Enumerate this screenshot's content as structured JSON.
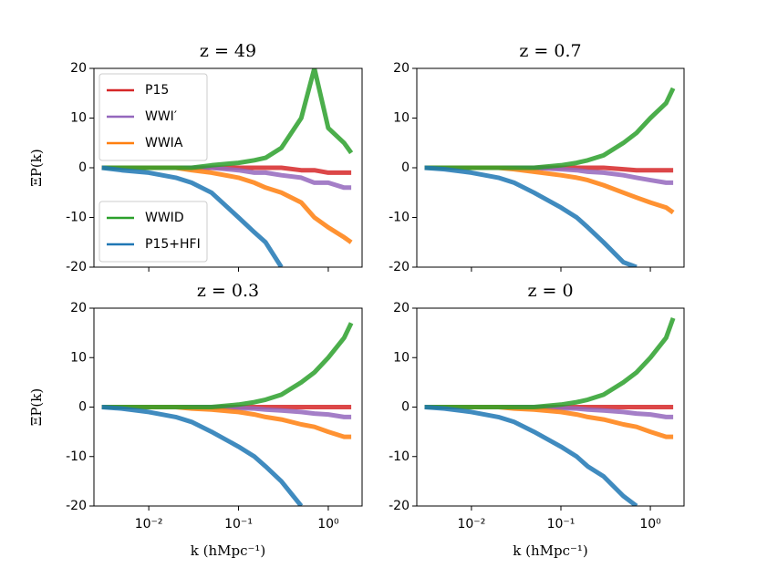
{
  "chart_data": [
    {
      "type": "line",
      "title": "z = 49",
      "ylabel": "ΞP(k)",
      "xscale": "log",
      "x": [
        0.003,
        0.005,
        0.01,
        0.02,
        0.03,
        0.05,
        0.1,
        0.15,
        0.2,
        0.3,
        0.5,
        0.7,
        1.0,
        1.5,
        1.8
      ],
      "xlim": [
        0.00245,
        2.38
      ],
      "xticks": [
        0.01,
        0.1,
        1
      ],
      "ylim": [
        -20,
        20
      ],
      "yticks": [
        -20,
        -10,
        0,
        10,
        20
      ],
      "legend": [
        {
          "loc": "upper left",
          "series": [
            0,
            1,
            2
          ]
        },
        {
          "loc": "lower left",
          "series": [
            3,
            4
          ]
        }
      ],
      "series": [
        {
          "name": "P15",
          "color": "#d62728",
          "values": [
            0,
            0,
            0,
            0,
            0,
            0,
            0,
            0,
            0,
            0,
            -0.5,
            -0.5,
            -1,
            -1,
            -1
          ]
        },
        {
          "name": "WWI′",
          "color": "#9467bd",
          "values": [
            0,
            0,
            0,
            0,
            0,
            0,
            -0.5,
            -1,
            -1,
            -1.5,
            -2,
            -3,
            -3,
            -4,
            -4
          ]
        },
        {
          "name": "WWIA",
          "color": "#ff7f0e",
          "values": [
            0,
            0,
            0,
            0,
            -0.5,
            -1,
            -2,
            -3,
            -4,
            -5,
            -7,
            -10,
            -12,
            -14,
            -15
          ]
        },
        {
          "name": "WWID",
          "color": "#2ca02c",
          "values": [
            0,
            0,
            0,
            0,
            0,
            0.5,
            1,
            1.5,
            2,
            4,
            10,
            20,
            8,
            5,
            3
          ]
        },
        {
          "name": "P15+HFI",
          "color": "#1f77b4",
          "values": [
            0,
            -0.5,
            -1,
            -2,
            -3,
            -5,
            -10,
            -13,
            -15,
            -20,
            null,
            null,
            null,
            null,
            null
          ]
        }
      ]
    },
    {
      "type": "line",
      "title": "z = 0.7",
      "xscale": "log",
      "x": [
        0.003,
        0.005,
        0.01,
        0.02,
        0.03,
        0.05,
        0.1,
        0.15,
        0.2,
        0.3,
        0.5,
        0.7,
        1.0,
        1.5,
        1.8
      ],
      "xlim": [
        0.00245,
        2.38
      ],
      "xticks": [
        0.01,
        0.1,
        1
      ],
      "ylim": [
        -20,
        20
      ],
      "yticks": [
        -20,
        -10,
        0,
        10,
        20
      ],
      "series": [
        {
          "name": "P15",
          "color": "#d62728",
          "values": [
            0,
            0,
            0,
            0,
            0,
            0,
            0,
            0,
            0,
            0,
            -0.3,
            -0.5,
            -0.5,
            -0.5,
            -0.5
          ]
        },
        {
          "name": "WWI′",
          "color": "#9467bd",
          "values": [
            0,
            0,
            0,
            0,
            0,
            0,
            -0.3,
            -0.5,
            -0.8,
            -1,
            -1.5,
            -2,
            -2.5,
            -3,
            -3
          ]
        },
        {
          "name": "WWIA",
          "color": "#ff7f0e",
          "values": [
            0,
            0,
            0,
            0,
            -0.3,
            -0.8,
            -1.5,
            -2,
            -2.5,
            -3.5,
            -5,
            -6,
            -7,
            -8,
            -9
          ]
        },
        {
          "name": "WWID",
          "color": "#2ca02c",
          "values": [
            0,
            0,
            0,
            0,
            0,
            0,
            0.5,
            1,
            1.5,
            2.5,
            5,
            7,
            10,
            13,
            16
          ]
        },
        {
          "name": "P15+HFI",
          "color": "#1f77b4",
          "values": [
            0,
            -0.3,
            -1,
            -2,
            -3,
            -5,
            -8,
            -10,
            -12,
            -15,
            -19,
            -20,
            null,
            null,
            null
          ]
        }
      ]
    },
    {
      "type": "line",
      "title": "z = 0.3",
      "ylabel": "ΞP(k)",
      "xlabel": "k (hMpc⁻¹)",
      "xscale": "log",
      "x": [
        0.003,
        0.005,
        0.01,
        0.02,
        0.03,
        0.05,
        0.1,
        0.15,
        0.2,
        0.3,
        0.5,
        0.7,
        1.0,
        1.5,
        1.8
      ],
      "xlim": [
        0.00245,
        2.38
      ],
      "xticks": [
        {
          "value": 0.01,
          "label": "10⁻²"
        },
        {
          "value": 0.1,
          "label": "10⁻¹"
        },
        {
          "value": 1,
          "label": "10⁰"
        }
      ],
      "ylim": [
        -20,
        20
      ],
      "yticks": [
        -20,
        -10,
        0,
        10,
        20
      ],
      "series": [
        {
          "name": "P15",
          "color": "#d62728",
          "values": [
            0,
            0,
            0,
            0,
            0,
            0,
            0,
            0,
            0,
            0,
            0,
            0,
            0,
            0,
            0
          ]
        },
        {
          "name": "WWI′",
          "color": "#9467bd",
          "values": [
            0,
            0,
            0,
            0,
            0,
            0,
            -0.2,
            -0.3,
            -0.5,
            -0.7,
            -1,
            -1.3,
            -1.5,
            -2,
            -2
          ]
        },
        {
          "name": "WWIA",
          "color": "#ff7f0e",
          "values": [
            0,
            0,
            0,
            0,
            -0.3,
            -0.5,
            -1,
            -1.5,
            -2,
            -2.5,
            -3.5,
            -4,
            -5,
            -6,
            -6
          ]
        },
        {
          "name": "WWID",
          "color": "#2ca02c",
          "values": [
            0,
            0,
            0,
            0,
            0,
            0,
            0.5,
            1,
            1.5,
            2.5,
            5,
            7,
            10,
            14,
            17
          ]
        },
        {
          "name": "P15+HFI",
          "color": "#1f77b4",
          "values": [
            0,
            -0.3,
            -1,
            -2,
            -3,
            -5,
            -8,
            -10,
            -12,
            -15,
            -20,
            null,
            null,
            null,
            null
          ]
        }
      ]
    },
    {
      "type": "line",
      "title": "z = 0",
      "xlabel": "k (hMpc⁻¹)",
      "xscale": "log",
      "x": [
        0.003,
        0.005,
        0.01,
        0.02,
        0.03,
        0.05,
        0.1,
        0.15,
        0.2,
        0.3,
        0.5,
        0.7,
        1.0,
        1.5,
        1.8
      ],
      "xlim": [
        0.00245,
        2.38
      ],
      "xticks": [
        {
          "value": 0.01,
          "label": "10⁻²"
        },
        {
          "value": 0.1,
          "label": "10⁻¹"
        },
        {
          "value": 1,
          "label": "10⁰"
        }
      ],
      "ylim": [
        -20,
        20
      ],
      "yticks": [
        -20,
        -10,
        0,
        10,
        20
      ],
      "series": [
        {
          "name": "P15",
          "color": "#d62728",
          "values": [
            0,
            0,
            0,
            0,
            0,
            0,
            0,
            0,
            0,
            0,
            0,
            0,
            0,
            0,
            0
          ]
        },
        {
          "name": "WWI′",
          "color": "#9467bd",
          "values": [
            0,
            0,
            0,
            0,
            0,
            0,
            -0.2,
            -0.3,
            -0.5,
            -0.7,
            -1,
            -1.3,
            -1.5,
            -2,
            -2
          ]
        },
        {
          "name": "WWIA",
          "color": "#ff7f0e",
          "values": [
            0,
            0,
            0,
            0,
            -0.3,
            -0.5,
            -1,
            -1.5,
            -2,
            -2.5,
            -3.5,
            -4,
            -5,
            -6,
            -6
          ]
        },
        {
          "name": "WWID",
          "color": "#2ca02c",
          "values": [
            0,
            0,
            0,
            0,
            0,
            0,
            0.5,
            1,
            1.5,
            2.5,
            5,
            7,
            10,
            14,
            18
          ]
        },
        {
          "name": "P15+HFI",
          "color": "#1f77b4",
          "values": [
            0,
            -0.3,
            -1,
            -2,
            -3,
            -5,
            -8,
            -10,
            -12,
            -14,
            -18,
            -20,
            null,
            null,
            null
          ]
        }
      ]
    }
  ]
}
